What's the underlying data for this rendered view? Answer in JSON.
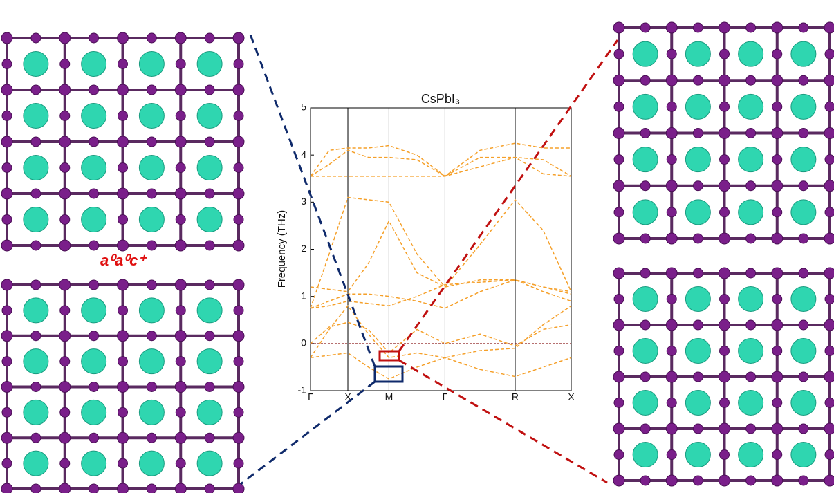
{
  "chart_data": {
    "type": "line",
    "title": "CsPbI₃",
    "y_label": "Frequency (THz)",
    "annotation": "a⁰a⁰c⁺",
    "x": [
      0,
      0.25,
      0.5,
      0.775,
      1.05,
      1.425,
      1.8,
      2.27,
      2.74,
      3.115,
      3.49
    ],
    "xlim": [
      0,
      3.49
    ],
    "xticks": [
      {
        "value": 0,
        "label": "Γ"
      },
      {
        "value": 0.5,
        "label": "X"
      },
      {
        "value": 1.05,
        "label": "M"
      },
      {
        "value": 1.8,
        "label": "Γ"
      },
      {
        "value": 2.74,
        "label": "R"
      },
      {
        "value": 3.49,
        "label": "X"
      }
    ],
    "ylim": [
      -1,
      5
    ],
    "yticks": [
      -1,
      0,
      1,
      2,
      3,
      4,
      5
    ],
    "linestyle": "dashed",
    "zero_line_color": "#8b1a1a",
    "series": [
      {
        "color": "#f5a02a",
        "values": [
          3.55,
          4.1,
          4.15,
          4.15,
          4.2,
          4.0,
          3.55,
          4.1,
          4.25,
          4.15,
          4.15
        ]
      },
      {
        "color": "#f5a02a",
        "values": [
          3.55,
          3.55,
          3.55,
          3.55,
          3.55,
          3.55,
          3.55,
          3.75,
          3.95,
          3.6,
          3.55
        ]
      },
      {
        "color": "#f5a02a",
        "values": [
          3.55,
          3.8,
          4.1,
          3.95,
          3.95,
          3.9,
          3.55,
          3.95,
          3.95,
          3.9,
          3.55
        ]
      },
      {
        "color": "#f5a02a",
        "values": [
          0.75,
          1.9,
          3.1,
          3.05,
          3.0,
          1.9,
          1.2,
          2.1,
          3.05,
          2.4,
          1.1
        ]
      },
      {
        "color": "#f5a02a",
        "values": [
          1.2,
          1.15,
          1.1,
          1.7,
          2.6,
          1.5,
          1.2,
          1.35,
          1.35,
          1.2,
          1.1
        ]
      },
      {
        "color": "#f5a02a",
        "values": [
          0.75,
          0.9,
          1.05,
          1.05,
          1.0,
          0.9,
          0.75,
          1.1,
          1.35,
          1.2,
          1.05
        ]
      },
      {
        "color": "#f5a02a",
        "values": [
          0.75,
          0.8,
          0.9,
          0.85,
          0.8,
          1.0,
          1.25,
          1.3,
          1.35,
          1.1,
          0.9
        ]
      },
      {
        "color": "#f5a02a",
        "values": [
          0,
          0.35,
          0.45,
          0.3,
          -0.2,
          0.3,
          0,
          0.2,
          -0.05,
          0.3,
          0.4
        ]
      },
      {
        "color": "#f5a02a",
        "values": [
          -0.3,
          -0.25,
          -0.2,
          -0.5,
          -0.75,
          -0.5,
          -0.3,
          -0.55,
          -0.7,
          -0.5,
          -0.3
        ]
      },
      {
        "color": "#f5a02a",
        "values": [
          -0.3,
          0.3,
          0.8,
          0.2,
          -0.3,
          -0.2,
          -0.3,
          -0.15,
          -0.1,
          0.4,
          0.8
        ]
      }
    ]
  }
}
